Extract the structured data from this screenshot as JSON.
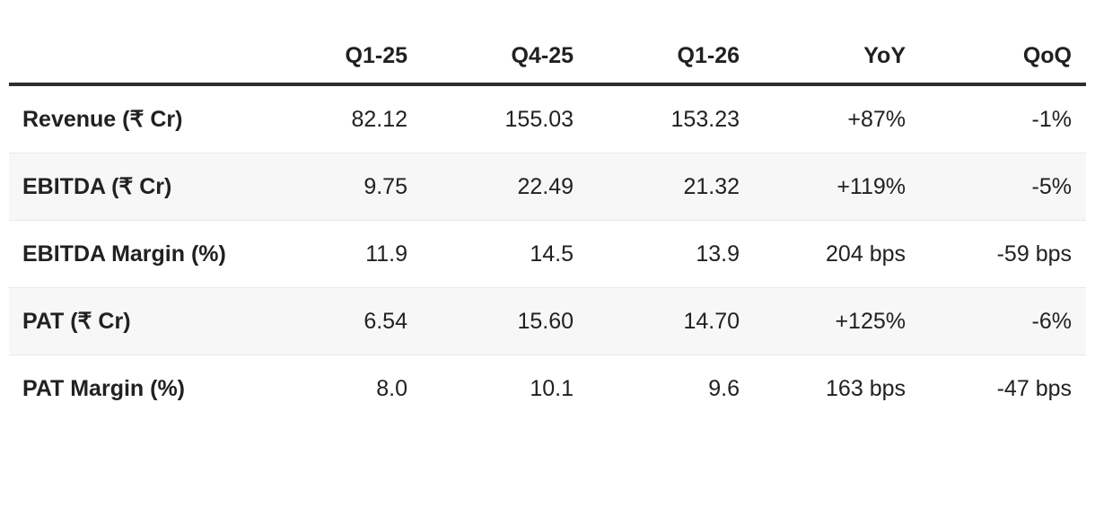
{
  "chart_data": {
    "type": "table",
    "columns": [
      "",
      "Q1-25",
      "Q4-25",
      "Q1-26",
      "YoY",
      "QoQ"
    ],
    "rows": [
      {
        "label": "Revenue (₹ Cr)",
        "values": [
          "82.12",
          "155.03",
          "153.23",
          "+87%",
          "-1%"
        ]
      },
      {
        "label": "EBITDA (₹ Cr)",
        "values": [
          "9.75",
          "22.49",
          "21.32",
          "+119%",
          "-5%"
        ]
      },
      {
        "label": "EBITDA Margin (%)",
        "values": [
          "11.9",
          "14.5",
          "13.9",
          "204 bps",
          "-59 bps"
        ]
      },
      {
        "label": "PAT (₹ Cr)",
        "values": [
          "6.54",
          "15.60",
          "14.70",
          "+125%",
          "-6%"
        ]
      },
      {
        "label": "PAT Margin (%)",
        "values": [
          "8.0",
          "10.1",
          "9.6",
          "163 bps",
          "-47 bps"
        ]
      }
    ],
    "layout": {
      "value_alignment": "right",
      "label_alignment": "left",
      "zebra_striped_rows": [
        2,
        4
      ]
    }
  },
  "colors": {
    "background": "#ffffff",
    "text": "#212121",
    "header_border": "#2e2e2e",
    "zebra_row_bg": "#f7f7f7",
    "row_divider": "#e9e9e9"
  }
}
